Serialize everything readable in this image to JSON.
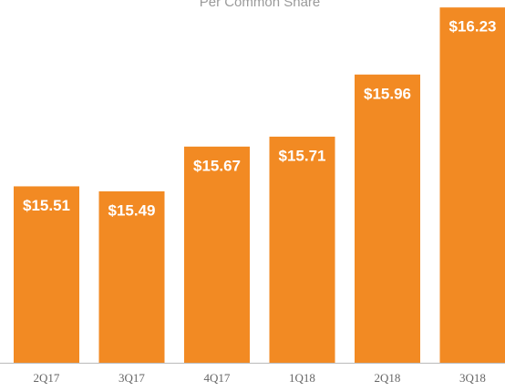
{
  "chart_data": {
    "type": "bar",
    "title": "Per Common Share",
    "categories": [
      "2Q17",
      "3Q17",
      "4Q17",
      "1Q18",
      "2Q18",
      "3Q18"
    ],
    "values": [
      15.51,
      15.49,
      15.67,
      15.71,
      15.96,
      16.23
    ],
    "value_labels": [
      "$15.51",
      "$15.49",
      "$15.67",
      "$15.71",
      "$15.96",
      "$16.23"
    ],
    "color": "#f28a23",
    "ylim": [
      14.8,
      16.26
    ]
  }
}
